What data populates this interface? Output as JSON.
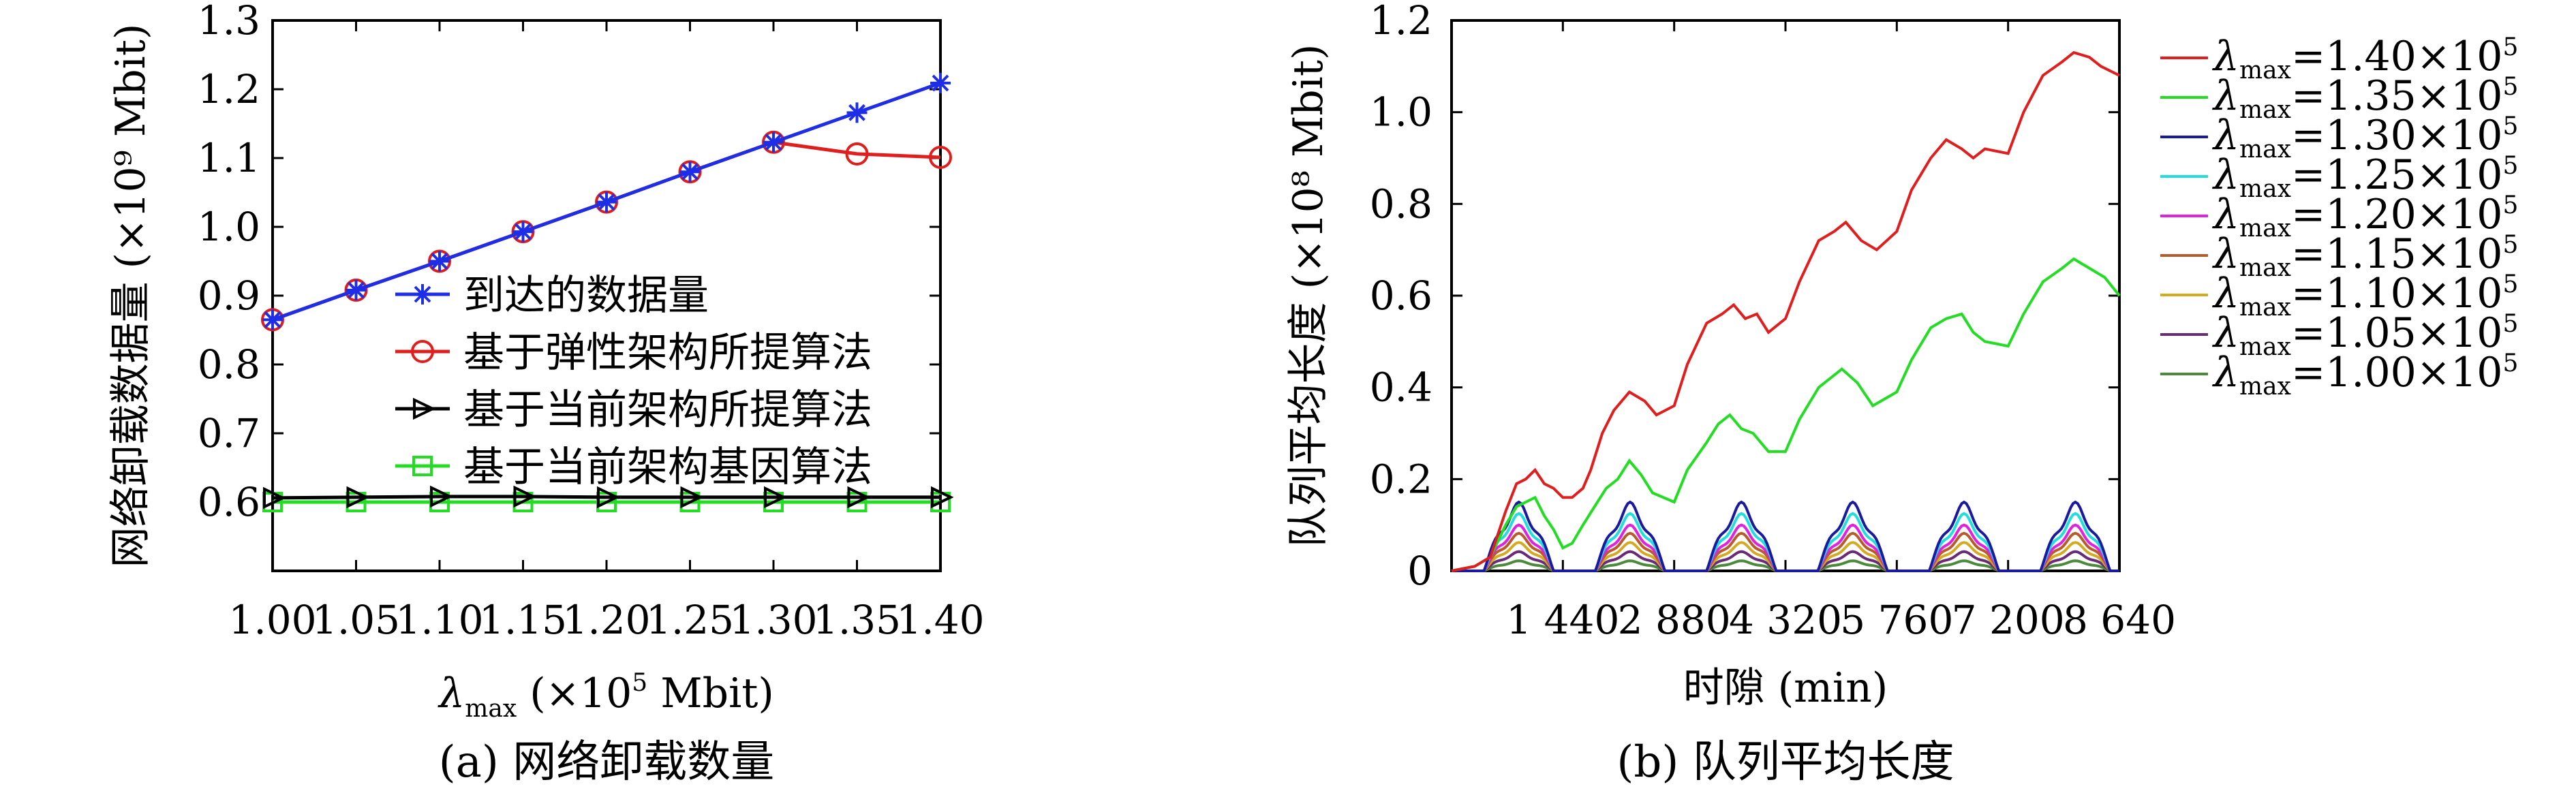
{
  "chart_data": [
    {
      "type": "line",
      "caption": "(a) 网络卸载数量",
      "ylabel": "网络卸载数据量 (×10⁹ Mbit)",
      "xlabel": {
        "symbol": "λ",
        "sub": "max",
        "text": " (×10",
        "sup": "5",
        "tail": " Mbit)"
      },
      "x": [
        1.0,
        1.05,
        1.1,
        1.15,
        1.2,
        1.25,
        1.3,
        1.35,
        1.4
      ],
      "x_tick_labels": [
        "1.00",
        "1.05",
        "1.10",
        "1.15",
        "1.20",
        "1.25",
        "1.30",
        "1.35",
        "1.40"
      ],
      "y_ticks": [
        0.6,
        0.7,
        0.8,
        0.9,
        1.0,
        1.1,
        1.2,
        1.3
      ],
      "y_tick_labels": [
        "0.6",
        "0.7",
        "0.8",
        "0.9",
        "1.0",
        "1.1",
        "1.2",
        "1.3"
      ],
      "xlim": [
        1.0,
        1.4
      ],
      "ylim": [
        0.5,
        1.3
      ],
      "grid": false,
      "legend_position": "center",
      "series": [
        {
          "name": "到达的数据量",
          "color": "#1e2ee6",
          "marker": "star",
          "values": [
            0.865,
            0.908,
            0.95,
            0.993,
            1.036,
            1.08,
            1.123,
            1.166,
            1.209
          ]
        },
        {
          "name": "基于弹性架构所提算法",
          "color": "#e01e1e",
          "marker": "circle",
          "values": [
            0.865,
            0.908,
            0.95,
            0.993,
            1.036,
            1.08,
            1.123,
            1.106,
            1.101
          ]
        },
        {
          "name": "基于当前架构所提算法",
          "color": "#000000",
          "marker": "triangle-right",
          "values": [
            0.606,
            0.607,
            0.608,
            0.608,
            0.607,
            0.607,
            0.607,
            0.607,
            0.607
          ]
        },
        {
          "name": "基于当前架构基因算法",
          "color": "#22dd22",
          "marker": "square",
          "values": [
            0.6,
            0.6,
            0.6,
            0.6,
            0.6,
            0.6,
            0.6,
            0.6,
            0.6
          ]
        }
      ]
    },
    {
      "type": "line",
      "caption": "(b) 队列平均长度",
      "ylabel": "队列平均长度 (×10⁸ Mbit)",
      "xlabel": "时隙 (min)",
      "x_ticks": [
        1440,
        2880,
        4320,
        5760,
        7200,
        8640
      ],
      "x_tick_labels": [
        "1 440",
        "2 880",
        "4 320",
        "5 760",
        "7 200",
        "8 640"
      ],
      "y_ticks": [
        0,
        0.2,
        0.4,
        0.6,
        0.8,
        1.0,
        1.2
      ],
      "y_tick_labels": [
        "0",
        "0.2",
        "0.4",
        "0.6",
        "0.8",
        "1.0",
        "1.2"
      ],
      "xlim": [
        0,
        8640
      ],
      "ylim": [
        0,
        1.2
      ],
      "grid": false,
      "legend_position": "outside-right",
      "series": [
        {
          "name": "1.40",
          "color": "#e01e1e",
          "points": [
            [
              0,
              0
            ],
            [
              300,
              0.01
            ],
            [
              500,
              0.03
            ],
            [
              700,
              0.13
            ],
            [
              840,
              0.19
            ],
            [
              960,
              0.2
            ],
            [
              1080,
              0.22
            ],
            [
              1200,
              0.19
            ],
            [
              1320,
              0.18
            ],
            [
              1440,
              0.16
            ],
            [
              1560,
              0.16
            ],
            [
              1700,
              0.18
            ],
            [
              1800,
              0.22
            ],
            [
              1950,
              0.3
            ],
            [
              2100,
              0.35
            ],
            [
              2300,
              0.39
            ],
            [
              2500,
              0.37
            ],
            [
              2650,
              0.34
            ],
            [
              2880,
              0.36
            ],
            [
              3050,
              0.45
            ],
            [
              3300,
              0.54
            ],
            [
              3500,
              0.56
            ],
            [
              3650,
              0.58
            ],
            [
              3800,
              0.55
            ],
            [
              3950,
              0.56
            ],
            [
              4100,
              0.52
            ],
            [
              4320,
              0.55
            ],
            [
              4500,
              0.63
            ],
            [
              4750,
              0.72
            ],
            [
              4950,
              0.74
            ],
            [
              5100,
              0.76
            ],
            [
              5300,
              0.72
            ],
            [
              5500,
              0.7
            ],
            [
              5760,
              0.74
            ],
            [
              5950,
              0.83
            ],
            [
              6200,
              0.9
            ],
            [
              6400,
              0.94
            ],
            [
              6600,
              0.92
            ],
            [
              6750,
              0.9
            ],
            [
              6900,
              0.92
            ],
            [
              7200,
              0.91
            ],
            [
              7400,
              1.0
            ],
            [
              7650,
              1.08
            ],
            [
              7900,
              1.11
            ],
            [
              8050,
              1.13
            ],
            [
              8250,
              1.12
            ],
            [
              8400,
              1.1
            ],
            [
              8640,
              1.08
            ]
          ]
        },
        {
          "name": "1.35",
          "color": "#22dd22",
          "points": [
            [
              0,
              0
            ],
            [
              300,
              0.01
            ],
            [
              500,
              0.03
            ],
            [
              700,
              0.1
            ],
            [
              840,
              0.14
            ],
            [
              960,
              0.15
            ],
            [
              1080,
              0.16
            ],
            [
              1200,
              0.12
            ],
            [
              1320,
              0.09
            ],
            [
              1440,
              0.05
            ],
            [
              1560,
              0.06
            ],
            [
              1700,
              0.1
            ],
            [
              1850,
              0.14
            ],
            [
              2000,
              0.18
            ],
            [
              2150,
              0.2
            ],
            [
              2300,
              0.24
            ],
            [
              2450,
              0.21
            ],
            [
              2600,
              0.17
            ],
            [
              2880,
              0.15
            ],
            [
              3050,
              0.22
            ],
            [
              3300,
              0.28
            ],
            [
              3450,
              0.32
            ],
            [
              3600,
              0.34
            ],
            [
              3750,
              0.31
            ],
            [
              3900,
              0.3
            ],
            [
              4100,
              0.26
            ],
            [
              4320,
              0.26
            ],
            [
              4500,
              0.33
            ],
            [
              4750,
              0.4
            ],
            [
              4900,
              0.42
            ],
            [
              5050,
              0.44
            ],
            [
              5250,
              0.41
            ],
            [
              5450,
              0.36
            ],
            [
              5760,
              0.39
            ],
            [
              5950,
              0.46
            ],
            [
              6200,
              0.53
            ],
            [
              6400,
              0.55
            ],
            [
              6600,
              0.56
            ],
            [
              6750,
              0.52
            ],
            [
              6900,
              0.5
            ],
            [
              7200,
              0.49
            ],
            [
              7400,
              0.56
            ],
            [
              7650,
              0.63
            ],
            [
              7900,
              0.66
            ],
            [
              8050,
              0.68
            ],
            [
              8250,
              0.66
            ],
            [
              8450,
              0.64
            ],
            [
              8640,
              0.6
            ]
          ]
        },
        {
          "name": "1.30",
          "color": "#1a1aa0",
          "amp": 0.15
        },
        {
          "name": "1.25",
          "color": "#22dddd",
          "amp": 0.125
        },
        {
          "name": "1.20",
          "color": "#e022e0",
          "amp": 0.1
        },
        {
          "name": "1.15",
          "color": "#b85a2a",
          "amp": 0.082
        },
        {
          "name": "1.10",
          "color": "#d4aa22",
          "amp": 0.062
        },
        {
          "name": "1.05",
          "color": "#6a2a7a",
          "amp": 0.042
        },
        {
          "name": "1.00",
          "color": "#4a8a3a",
          "amp": 0.022
        }
      ],
      "legend_entries": [
        {
          "symbol": "λ",
          "sub": "max",
          "text": "=1.40×10",
          "sup": "5",
          "color": "#e01e1e"
        },
        {
          "symbol": "λ",
          "sub": "max",
          "text": "=1.35×10",
          "sup": "5",
          "color": "#22dd22"
        },
        {
          "symbol": "λ",
          "sub": "max",
          "text": "=1.30×10",
          "sup": "5",
          "color": "#1a1aa0"
        },
        {
          "symbol": "λ",
          "sub": "max",
          "text": "=1.25×10",
          "sup": "5",
          "color": "#22dddd"
        },
        {
          "symbol": "λ",
          "sub": "max",
          "text": "=1.20×10",
          "sup": "5",
          "color": "#e022e0"
        },
        {
          "symbol": "λ",
          "sub": "max",
          "text": "=1.15×10",
          "sup": "5",
          "color": "#b85a2a"
        },
        {
          "symbol": "λ",
          "sub": "max",
          "text": "=1.10×10",
          "sup": "5",
          "color": "#d4aa22"
        },
        {
          "symbol": "λ",
          "sub": "max",
          "text": "=1.05×10",
          "sup": "5",
          "color": "#6a2a7a"
        },
        {
          "symbol": "λ",
          "sub": "max",
          "text": "=1.00×10",
          "sup": "5",
          "color": "#4a8a3a"
        }
      ]
    }
  ]
}
